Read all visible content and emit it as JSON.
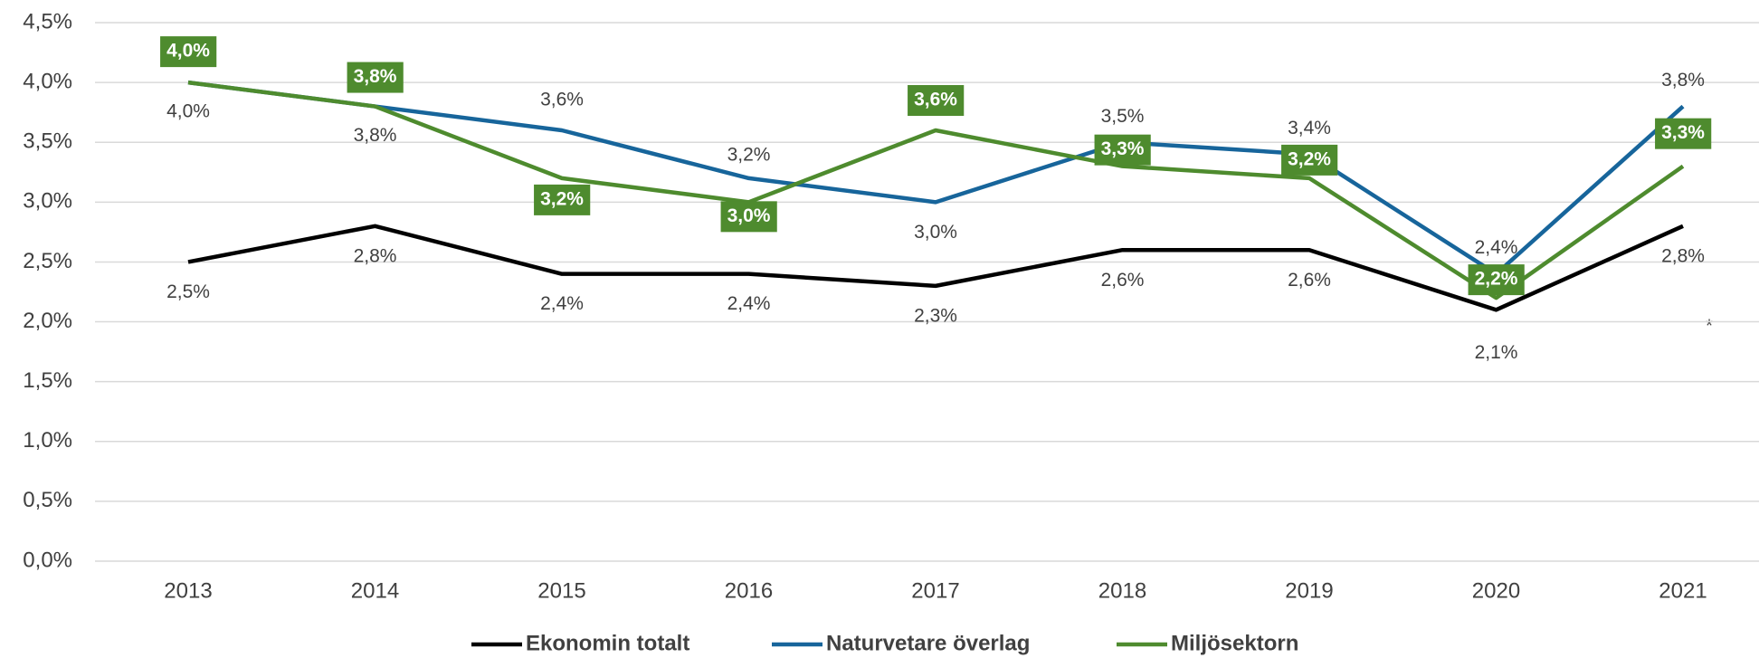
{
  "chart_data": {
    "type": "line",
    "categories": [
      "2013",
      "2014",
      "2015",
      "2016",
      "2017",
      "2018",
      "2019",
      "2020",
      "2021"
    ],
    "ylim": [
      0,
      4.5
    ],
    "yticks": [
      {
        "value": 0,
        "label": "0,0%"
      },
      {
        "value": 0.5,
        "label": "0,5%"
      },
      {
        "value": 1,
        "label": "1,0%"
      },
      {
        "value": 1.5,
        "label": "1,5%"
      },
      {
        "value": 2,
        "label": "2,0%"
      },
      {
        "value": 2.5,
        "label": "2,5%"
      },
      {
        "value": 3,
        "label": "3,0%"
      },
      {
        "value": 3.5,
        "label": "3,5%"
      },
      {
        "value": 4,
        "label": "4,0%"
      },
      {
        "value": 4.5,
        "label": "4,5%"
      }
    ],
    "grid": true,
    "annotations": [
      "*"
    ],
    "series": [
      {
        "name": "Ekonomin totalt",
        "color": "#000000",
        "values": [
          2.5,
          2.8,
          2.4,
          2.4,
          2.3,
          2.6,
          2.6,
          2.1,
          2.8
        ],
        "value_labels": [
          "2,5%",
          "2,8%",
          "2,4%",
          "2,4%",
          "2,3%",
          "2,6%",
          "2,6%",
          "2,1%",
          "2,8%"
        ]
      },
      {
        "name": "Naturvetare överlag",
        "color": "#17659b",
        "values": [
          4.0,
          3.8,
          3.6,
          3.2,
          3.0,
          3.5,
          3.4,
          2.4,
          3.8
        ],
        "value_labels": [
          "4,0%",
          "3,8%",
          "3,6%",
          "3,2%",
          "3,0%",
          "3,5%",
          "3,4%",
          "2,4%",
          "3,8%"
        ]
      },
      {
        "name": "Miljösektorn",
        "color": "#4e8b2e",
        "values": [
          4.0,
          3.8,
          3.2,
          3.0,
          3.6,
          3.3,
          3.2,
          2.2,
          3.3
        ],
        "value_labels": [
          "4,0%",
          "3,8%",
          "3,2%",
          "3,0%",
          "3,6%",
          "3,3%",
          "3,2%",
          "2,2%",
          "3,3%"
        ]
      }
    ]
  }
}
